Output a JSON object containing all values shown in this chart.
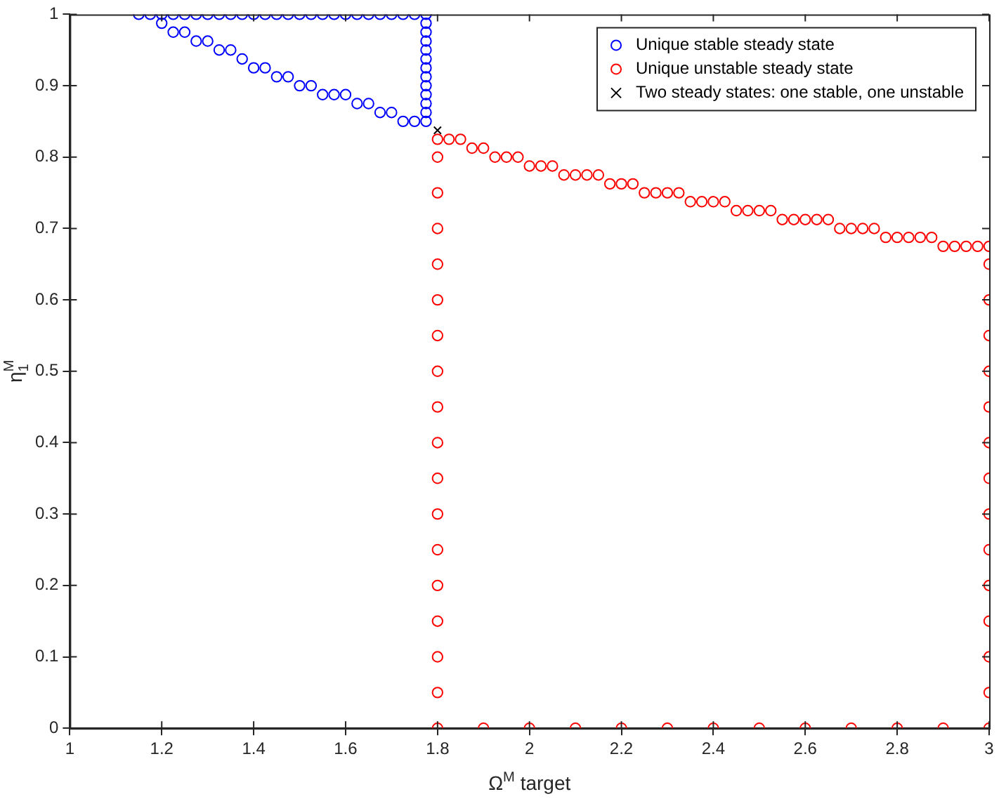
{
  "chart_data": {
    "type": "scatter",
    "xlabel": "Ω$^{M}$ target",
    "ylabel": "η$_{1}$$^{M}$",
    "xlim": [
      1,
      3
    ],
    "ylim": [
      0,
      1
    ],
    "xticks": [
      1,
      1.2,
      1.4,
      1.6,
      1.8,
      2,
      2.2,
      2.4,
      2.6,
      2.8,
      3
    ],
    "yticks": [
      0,
      0.1,
      0.2,
      0.3,
      0.4,
      0.5,
      0.6,
      0.7,
      0.8,
      0.9,
      1
    ],
    "legend": "top right",
    "series": [
      {
        "name": "Unique stable steady state",
        "color": "#0000ff",
        "marker": "circle",
        "x": [
          1.15,
          1.175,
          1.2,
          1.225,
          1.25,
          1.275,
          1.3,
          1.325,
          1.35,
          1.375,
          1.4,
          1.425,
          1.45,
          1.475,
          1.5,
          1.525,
          1.55,
          1.575,
          1.6,
          1.625,
          1.65,
          1.675,
          1.7,
          1.725,
          1.75,
          1.775,
          1.2,
          1.225,
          1.25,
          1.275,
          1.3,
          1.325,
          1.35,
          1.375,
          1.4,
          1.425,
          1.45,
          1.475,
          1.5,
          1.525,
          1.55,
          1.575,
          1.6,
          1.625,
          1.65,
          1.675,
          1.7,
          1.725,
          1.75,
          1.775,
          1.775,
          1.775,
          1.775,
          1.775,
          1.775,
          1.775,
          1.775,
          1.775,
          1.775,
          1.775,
          1.775
        ],
        "values": [
          1,
          1,
          1,
          1,
          1,
          1,
          1,
          1,
          1,
          1,
          1,
          1,
          1,
          1,
          1,
          1,
          1,
          1,
          1,
          1,
          1,
          1,
          1,
          1,
          1,
          1,
          0.9875,
          0.975,
          0.975,
          0.9625,
          0.9625,
          0.95,
          0.95,
          0.9375,
          0.925,
          0.925,
          0.9125,
          0.9125,
          0.9,
          0.9,
          0.8875,
          0.8875,
          0.8875,
          0.875,
          0.875,
          0.8625,
          0.8625,
          0.85,
          0.85,
          0.85,
          0.8625,
          0.875,
          0.8875,
          0.9,
          0.9125,
          0.925,
          0.9375,
          0.95,
          0.9625,
          0.975,
          0.9875
        ]
      },
      {
        "name": "Unique unstable steady state",
        "color": "#ff0000",
        "marker": "circle",
        "x": [
          1.8,
          1.825,
          1.85,
          1.875,
          1.9,
          1.925,
          1.95,
          1.975,
          2,
          2.025,
          2.05,
          2.075,
          2.1,
          2.125,
          2.15,
          2.175,
          2.2,
          2.225,
          2.25,
          2.275,
          2.3,
          2.325,
          2.35,
          2.375,
          2.4,
          2.425,
          2.45,
          2.475,
          2.5,
          2.525,
          2.55,
          2.575,
          2.6,
          2.625,
          2.65,
          2.675,
          2.7,
          2.725,
          2.75,
          2.775,
          2.8,
          2.825,
          2.85,
          2.875,
          2.9,
          2.925,
          2.95,
          2.975,
          3,
          1.8,
          1.8,
          1.8,
          1.8,
          1.8,
          1.8,
          1.8,
          1.8,
          1.8,
          1.8,
          1.8,
          1.8,
          1.8,
          1.8,
          1.8,
          1.8,
          1.8,
          1.9,
          2,
          2.1,
          2.2,
          2.3,
          2.4,
          2.5,
          2.6,
          2.7,
          2.8,
          2.9,
          3,
          3,
          3,
          3,
          3,
          3,
          3,
          3,
          3,
          3,
          3,
          3,
          3,
          3
        ],
        "values": [
          0.825,
          0.825,
          0.825,
          0.8125,
          0.8125,
          0.8,
          0.8,
          0.8,
          0.7875,
          0.7875,
          0.7875,
          0.775,
          0.775,
          0.775,
          0.775,
          0.7625,
          0.7625,
          0.7625,
          0.75,
          0.75,
          0.75,
          0.75,
          0.7375,
          0.7375,
          0.7375,
          0.7375,
          0.725,
          0.725,
          0.725,
          0.725,
          0.7125,
          0.7125,
          0.7125,
          0.7125,
          0.7125,
          0.7,
          0.7,
          0.7,
          0.7,
          0.6875,
          0.6875,
          0.6875,
          0.6875,
          0.6875,
          0.675,
          0.675,
          0.675,
          0.675,
          0.675,
          0,
          0.05,
          0.1,
          0.15,
          0.2,
          0.25,
          0.3,
          0.35,
          0.4,
          0.45,
          0.5,
          0.55,
          0.6,
          0.65,
          0.7,
          0.75,
          0.8,
          0,
          0,
          0,
          0,
          0,
          0,
          0,
          0,
          0,
          0,
          0,
          0,
          0.05,
          0.1,
          0.15,
          0.2,
          0.25,
          0.3,
          0.35,
          0.4,
          0.45,
          0.5,
          0.55,
          0.6,
          0.65
        ]
      },
      {
        "name": "Two steady states: one stable, one unstable",
        "color": "#000000",
        "marker": "cross",
        "x": [
          1.8
        ],
        "values": [
          0.8375
        ]
      }
    ]
  }
}
